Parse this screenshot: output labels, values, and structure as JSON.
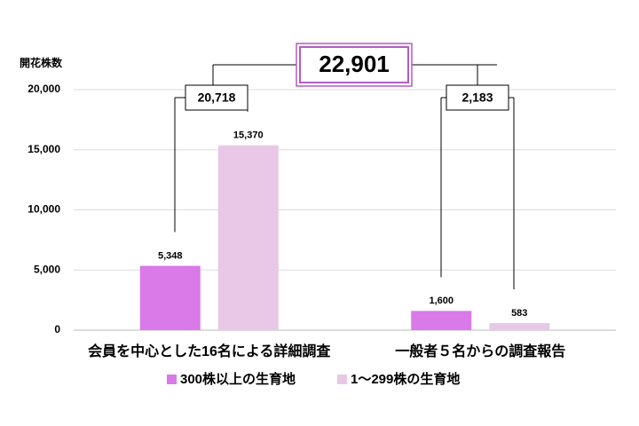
{
  "chart_data": {
    "type": "bar",
    "ylabel": "開花株数",
    "categories": [
      "会員を中心とした16名による詳細調査",
      "一般者５名からの調査報告"
    ],
    "series": [
      {
        "name": "300株以上の生育地",
        "color": "#d97ae8",
        "values": [
          5348,
          1600
        ],
        "value_labels": [
          "5,348",
          "1,600"
        ]
      },
      {
        "name": "1〜299株の生育地",
        "color": "#e8c8e6",
        "values": [
          15370,
          583
        ],
        "value_labels": [
          "15,370",
          "583"
        ]
      }
    ],
    "ylim": [
      0,
      20000
    ],
    "yticks": [
      0,
      {
        "value": 5000,
        "label": "5,000"
      },
      {
        "value": 10000,
        "label": "10,000"
      },
      {
        "value": 15000,
        "label": "15,000"
      },
      {
        "value": 20000,
        "label": "20,000"
      }
    ],
    "grid": true,
    "annotations": [
      "20,718",
      "2,183",
      "22,901"
    ]
  }
}
